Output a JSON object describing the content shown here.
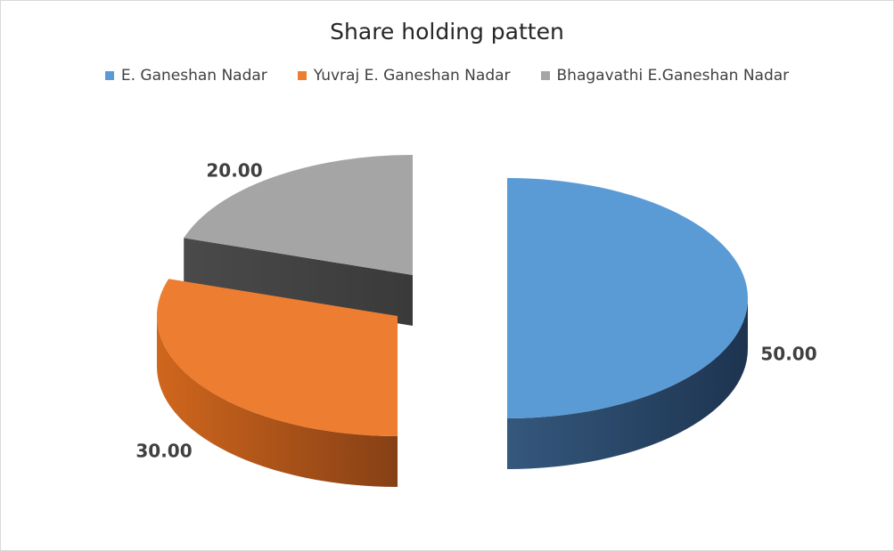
{
  "chart_data": {
    "type": "pie",
    "title": "Share holding patten",
    "legend_position": "top",
    "categories": [
      "E. Ganeshan Nadar",
      "Yuvraj E. Ganeshan Nadar",
      "Bhagavathi E.Ganeshan Nadar"
    ],
    "values": [
      50,
      30,
      20
    ],
    "data_labels": [
      "50.00",
      "30.00",
      "20.00"
    ],
    "colors": [
      "#5b9bd5",
      "#ed7d31",
      "#a5a5a5"
    ],
    "style": "3d-exploded"
  }
}
